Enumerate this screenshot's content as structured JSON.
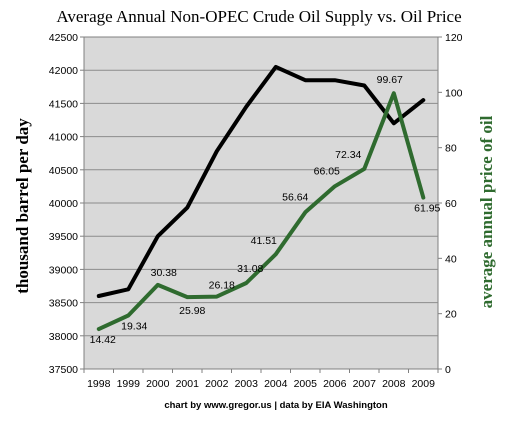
{
  "chart_data": {
    "type": "line",
    "title": "Average Annual Non-OPEC Crude Oil Supply vs. Oil Price",
    "x": [
      "1998",
      "1999",
      "2000",
      "2001",
      "2002",
      "2003",
      "2004",
      "2005",
      "2006",
      "2007",
      "2008",
      "2009"
    ],
    "ylabel": "thousand barrel per day",
    "ylabel_right": "average annual price of oil",
    "ylim": [
      37500,
      42500
    ],
    "y_ticks": [
      "37500",
      "38000",
      "38500",
      "39000",
      "39500",
      "40000",
      "40500",
      "41000",
      "41500",
      "42000",
      "42500"
    ],
    "ylim_right": [
      0,
      120
    ],
    "y_ticks_right": [
      "0",
      "20",
      "40",
      "60",
      "80",
      "100",
      "120"
    ],
    "grid": true,
    "series": [
      {
        "axis": "left",
        "color": "#000000",
        "values": [
          38600,
          38700,
          39500,
          39930,
          40780,
          41450,
          42050,
          41850,
          41850,
          41770,
          41200,
          41550
        ]
      },
      {
        "axis": "right",
        "color": "#2f6b2f",
        "values": [
          14.42,
          19.34,
          30.38,
          25.98,
          26.18,
          31.08,
          41.51,
          56.64,
          66.05,
          72.34,
          99.67,
          61.95
        ],
        "labels": [
          "14.42",
          "19.34",
          "30.38",
          "25.98",
          "26.18",
          "31.08",
          "41.51",
          "56.64",
          "66.05",
          "72.34",
          "99.67",
          "61.95"
        ]
      }
    ]
  },
  "footer": "chart by www.gregor.us   |   data by EIA Washington"
}
